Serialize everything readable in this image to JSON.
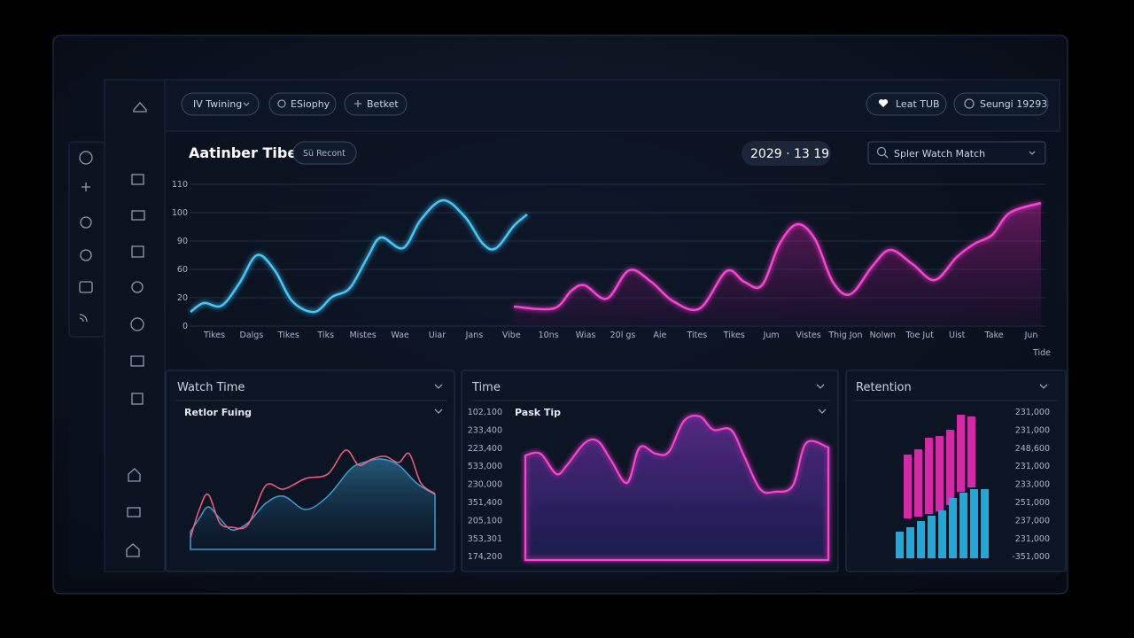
{
  "toolbar": {
    "buttons": [
      "IV Twining",
      "ESiophy",
      "Betket"
    ],
    "right": [
      "Leat TUB",
      "Seungi 19293"
    ]
  },
  "header": {
    "title": "Aatinber Tibe",
    "badge": "Sü Recont",
    "date": "2029 · 13 19",
    "search": "Spler Watch Match"
  },
  "main_chart": {
    "y_labels": [
      "110",
      "100",
      "90",
      "60",
      "20",
      "0"
    ],
    "x_labels": [
      "Tikes",
      "Dalgs",
      "Tikes",
      "Tiks",
      "Mistes",
      "Wae",
      "Uiar",
      "Jans",
      "Vibe",
      "10ns",
      "Wias",
      "20l gs",
      "Aie",
      "Tites",
      "Tikes",
      "Jum",
      "Vistes",
      "Thig Jon",
      "Nolwn",
      "Toe Jut",
      "Uist",
      "Take",
      "Jun"
    ],
    "x_axis_label": "Tide"
  },
  "panels": [
    {
      "title": "Watch Time",
      "subtitle": "Retlor Fuing"
    },
    {
      "title": "Time",
      "subtitle": "Pask Tip",
      "labels": [
        "102,100",
        "233,400",
        "223,400",
        "533,000",
        "230,000",
        "351,400",
        "205,100",
        "353,301",
        "174,200"
      ]
    },
    {
      "title": "Retention",
      "labels": [
        "231,000",
        "231,000",
        "248,600",
        "231,000",
        "233,000",
        "251,000",
        "237,000",
        "231,000",
        "-351,000"
      ]
    }
  ]
}
